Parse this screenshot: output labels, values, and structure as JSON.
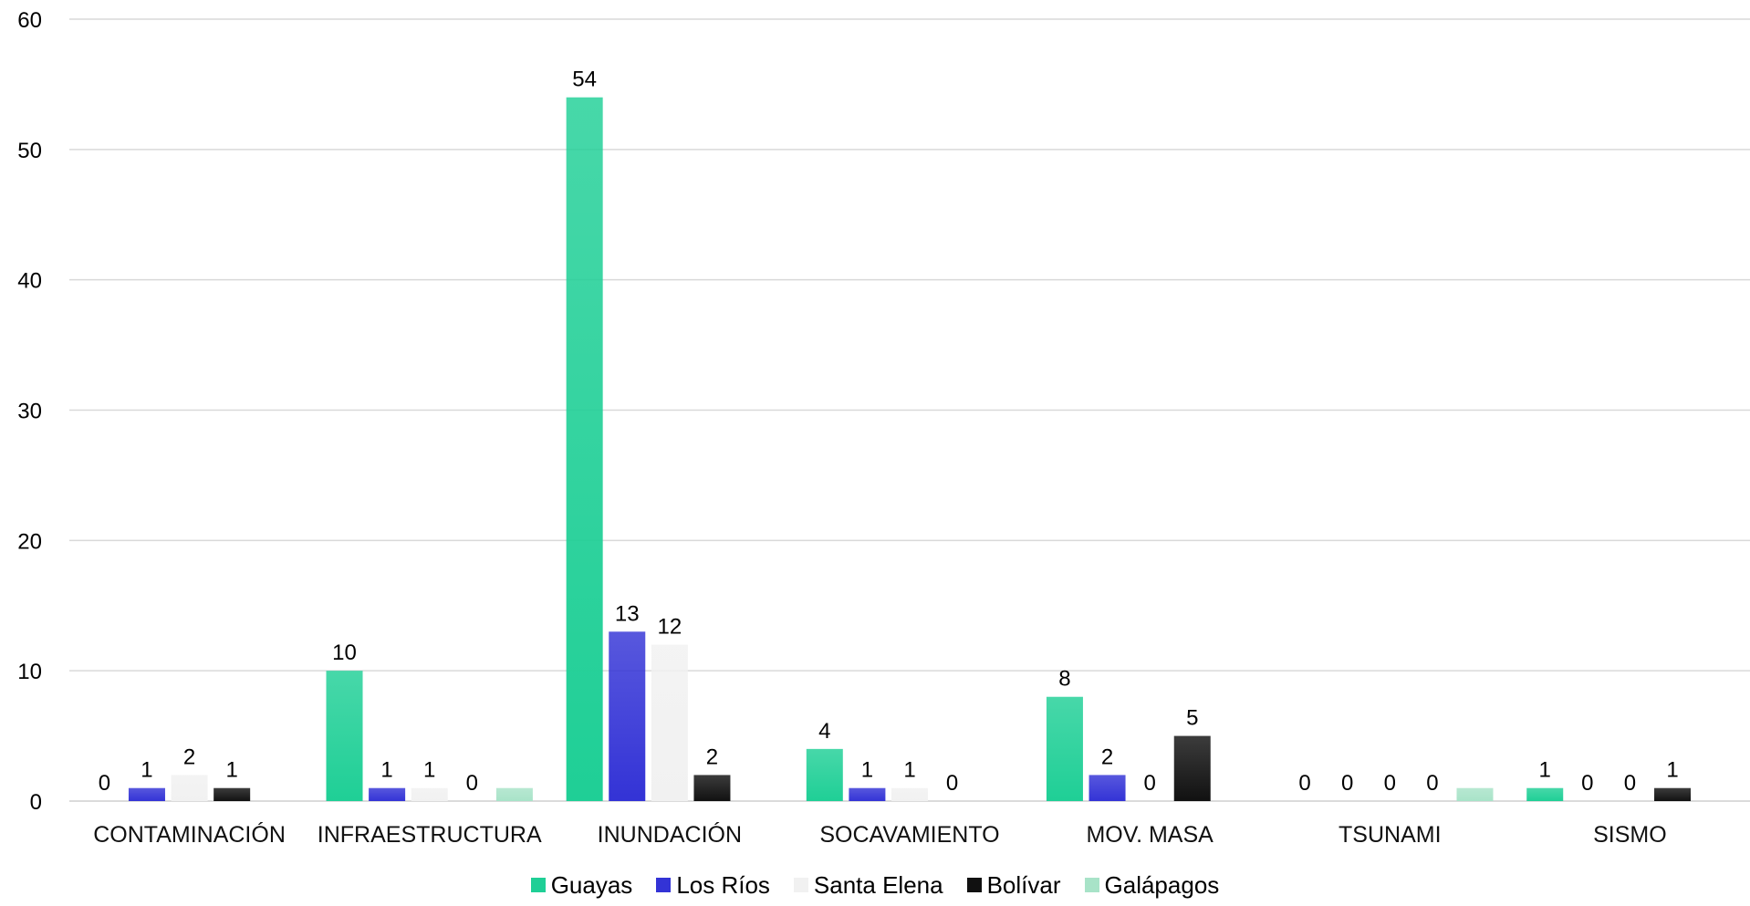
{
  "chart_data": {
    "type": "bar",
    "categories": [
      "CONTAMINACIÓN",
      "INFRAESTRUCTURA",
      "INUNDACIÓN",
      "SOCAVAMIENTO",
      "MOV. MASA",
      "TSUNAMI",
      "SISMO"
    ],
    "series": [
      {
        "name": "Guayas",
        "color": "#1fcf96",
        "values": [
          0,
          10,
          54,
          4,
          8,
          0,
          1
        ],
        "labels": [
          "0",
          "10",
          "54",
          "4",
          "8",
          "0",
          "1"
        ]
      },
      {
        "name": "Los Ríos",
        "color": "#3333d6",
        "values": [
          1,
          1,
          13,
          1,
          2,
          0,
          0
        ],
        "labels": [
          "1",
          "1",
          "13",
          "1",
          "2",
          "0",
          "0"
        ]
      },
      {
        "name": "Santa Elena",
        "color": "#f1f1f1",
        "values": [
          2,
          1,
          12,
          1,
          0,
          0,
          0
        ],
        "labels": [
          "2",
          "1",
          "12",
          "1",
          "0",
          "0",
          "0"
        ]
      },
      {
        "name": "Bolívar",
        "color": "#111111",
        "values": [
          1,
          0,
          2,
          0,
          5,
          0,
          1
        ],
        "labels": [
          "1",
          "0",
          "2",
          "0",
          "5",
          "0",
          "1"
        ]
      },
      {
        "name": "Galápagos",
        "color": "#a8e3c8",
        "values": [
          0,
          1,
          0,
          0,
          0,
          1,
          0
        ],
        "labels": [
          "",
          "",
          "",
          "",
          "",
          "",
          ""
        ]
      }
    ],
    "yticks": [
      "0",
      "10",
      "20",
      "30",
      "40",
      "50",
      "60"
    ],
    "ylim": [
      0,
      60
    ],
    "grid": true,
    "legend_position": "bottom"
  }
}
